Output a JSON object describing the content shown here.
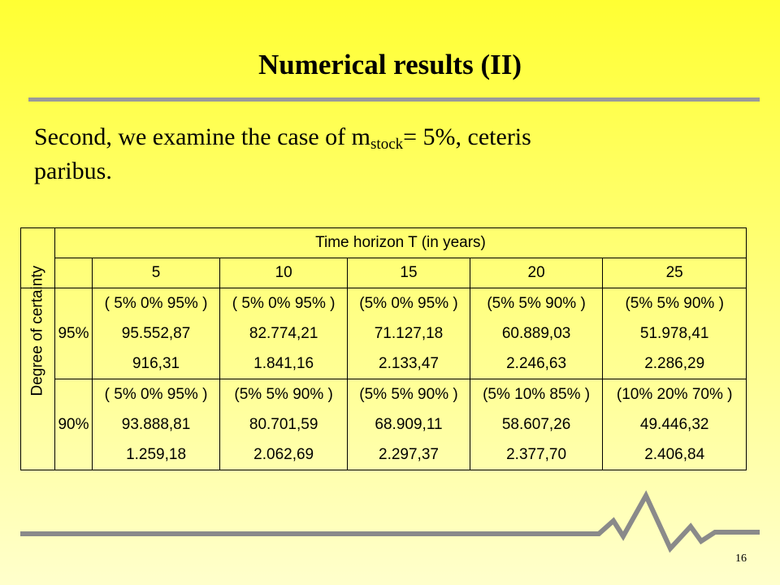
{
  "title": "Numerical results (II)",
  "body": {
    "text_before": "Second, we examine the case of m",
    "subscript": "stock",
    "text_after": "= 5%, ceteris",
    "text_line2": "paribus."
  },
  "table": {
    "header": "Time horizon T (in years)",
    "row_header": "Degree of certainty",
    "columns": [
      "5",
      "10",
      "15",
      "20",
      "25"
    ],
    "rows": [
      {
        "label": "95%",
        "allocations": [
          "( 5% 0% 95% )",
          "( 5% 0% 95% )",
          "(5% 0% 95% )",
          "(5% 5% 90% )",
          "(5% 5% 90% )"
        ],
        "values": [
          "95.552,87",
          "82.774,21",
          "71.127,18",
          "60.889,03",
          "51.978,41"
        ],
        "errors": [
          "916,31",
          "1.841,16",
          "2.133,47",
          "2.246,63",
          "2.286,29"
        ]
      },
      {
        "label": "90%",
        "allocations": [
          "( 5% 0% 95% )",
          "(5% 5% 90% )",
          "(5% 5% 90% )",
          "(5% 10% 85% )",
          "(10% 20% 70% )"
        ],
        "values": [
          "93.888,81",
          "80.701,59",
          "68.909,11",
          "58.607,26",
          "49.446,32"
        ],
        "errors": [
          "1.259,18",
          "2.062,69",
          "2.297,37",
          "2.377,70",
          "2.406,84"
        ]
      }
    ]
  },
  "page_number": "16"
}
